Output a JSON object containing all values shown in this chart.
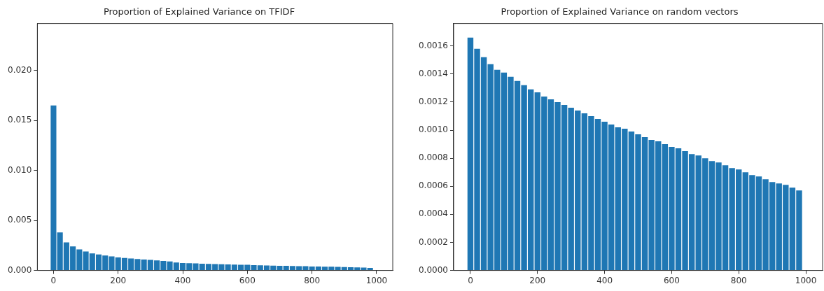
{
  "chart_data": [
    {
      "type": "bar",
      "title": "Proportion of Explained Variance on TFIDF",
      "color": "#1f77b4",
      "x": [
        0,
        20,
        40,
        60,
        80,
        100,
        120,
        140,
        160,
        180,
        200,
        220,
        240,
        260,
        280,
        300,
        320,
        340,
        360,
        380,
        400,
        420,
        440,
        460,
        480,
        500,
        520,
        540,
        560,
        580,
        600,
        620,
        640,
        660,
        680,
        700,
        720,
        740,
        760,
        780,
        800,
        820,
        840,
        860,
        880,
        900,
        920,
        940,
        960,
        980
      ],
      "values": [
        0.0165,
        0.0038,
        0.0028,
        0.0024,
        0.0021,
        0.0019,
        0.0017,
        0.0016,
        0.0015,
        0.0014,
        0.0013,
        0.00125,
        0.0012,
        0.00115,
        0.0011,
        0.00105,
        0.001,
        0.00095,
        0.0009,
        0.0008,
        0.00075,
        0.00072,
        0.0007,
        0.00068,
        0.00066,
        0.00064,
        0.00062,
        0.0006,
        0.00058,
        0.00057,
        0.00056,
        0.00054,
        0.00052,
        0.0005,
        0.00048,
        0.00047,
        0.00046,
        0.00045,
        0.00043,
        0.00042,
        0.0004,
        0.00039,
        0.00038,
        0.00037,
        0.00036,
        0.00034,
        0.00032,
        0.0003,
        0.00028,
        0.00026
      ],
      "xlim": [
        -50,
        1050
      ],
      "xticks": [
        0,
        200,
        400,
        600,
        800,
        1000
      ],
      "ylim": [
        0,
        0.0247
      ],
      "yticks": [
        {
          "value": 0,
          "label": "0.000"
        },
        0.005,
        {
          "value": 0.01,
          "label": "0.010"
        },
        0.015,
        {
          "value": 0.02,
          "label": "0.020"
        }
      ],
      "grid": false,
      "legend": false
    },
    {
      "type": "bar",
      "title": "Proportion of Explained Variance on random vectors",
      "color": "#1f77b4",
      "x": [
        0,
        20,
        40,
        60,
        80,
        100,
        120,
        140,
        160,
        180,
        200,
        220,
        240,
        260,
        280,
        300,
        320,
        340,
        360,
        380,
        400,
        420,
        440,
        460,
        480,
        500,
        520,
        540,
        560,
        580,
        600,
        620,
        640,
        660,
        680,
        700,
        720,
        740,
        760,
        780,
        800,
        820,
        840,
        860,
        880,
        900,
        920,
        940,
        960,
        980
      ],
      "values": [
        0.00166,
        0.00158,
        0.00152,
        0.00147,
        0.00143,
        0.00141,
        0.00138,
        0.00135,
        0.00132,
        0.00129,
        0.00127,
        0.00124,
        0.00122,
        0.0012,
        0.00118,
        0.00116,
        0.00114,
        0.00112,
        0.0011,
        0.00108,
        0.00106,
        0.00104,
        0.00102,
        0.00101,
        0.00099,
        0.00097,
        0.00095,
        0.00093,
        0.00092,
        0.0009,
        0.00088,
        0.00087,
        0.00085,
        0.00083,
        0.00082,
        0.0008,
        0.00078,
        0.00077,
        0.00075,
        0.00073,
        0.00072,
        0.0007,
        0.00068,
        0.00067,
        0.00065,
        0.00063,
        0.00062,
        0.00061,
        0.00059,
        0.00057
      ],
      "xlim": [
        -50,
        1050
      ],
      "xticks": [
        0,
        200,
        400,
        600,
        800,
        1000
      ],
      "ylim": [
        0,
        0.00176
      ],
      "yticks": [
        {
          "value": 0,
          "label": "0.0000"
        },
        {
          "value": 0.0002,
          "label": "0.0002"
        },
        {
          "value": 0.0004,
          "label": "0.0004"
        },
        {
          "value": 0.0006,
          "label": "0.0006"
        },
        {
          "value": 0.0008,
          "label": "0.0008"
        },
        {
          "value": 0.001,
          "label": "0.0010"
        },
        {
          "value": 0.0012,
          "label": "0.0012"
        },
        {
          "value": 0.0014,
          "label": "0.0014"
        },
        {
          "value": 0.0016,
          "label": "0.0016"
        }
      ],
      "grid": false,
      "legend": false
    }
  ]
}
